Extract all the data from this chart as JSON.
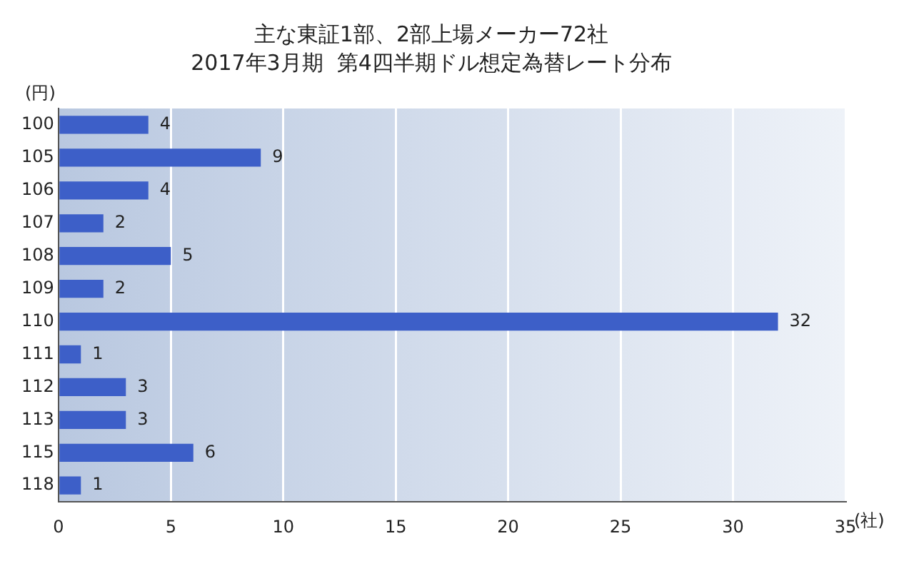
{
  "chart_data": {
    "type": "bar",
    "orientation": "horizontal",
    "title": "主な東証1部、2部上場メーカー72社",
    "subtitle": "2017年3月期  第4四半期ドル想定為替レート分布",
    "ylabel": "(円)",
    "xlabel": "(社)",
    "categories": [
      "100",
      "105",
      "106",
      "107",
      "108",
      "109",
      "110",
      "111",
      "112",
      "113",
      "115",
      "118"
    ],
    "values": [
      4,
      9,
      4,
      2,
      5,
      2,
      32,
      1,
      3,
      3,
      6,
      1
    ],
    "color": "#3d5fc8",
    "xlim": [
      0,
      35
    ],
    "xticks": [
      0,
      5,
      10,
      15,
      20,
      25,
      30,
      35
    ],
    "grid": "x",
    "data_labels": true
  }
}
